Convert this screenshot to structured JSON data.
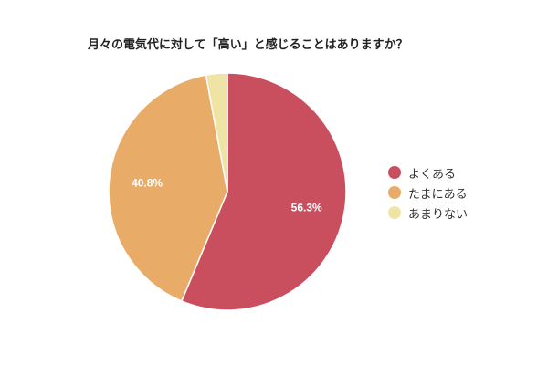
{
  "chart_data": {
    "type": "pie",
    "title": "月々の電気代に対して「高い」と感じることはありますか？",
    "slices": [
      {
        "label": "よくある",
        "value": 56.3,
        "display": "56.3%",
        "color": "#c94f5e"
      },
      {
        "label": "たまにある",
        "value": 40.8,
        "display": "40.8%",
        "color": "#e8ac68"
      },
      {
        "label": "あまりない",
        "value": 2.9,
        "display": "",
        "color": "#f0e4a4"
      }
    ],
    "legend_position": "right",
    "label_color": "#ffffff"
  }
}
